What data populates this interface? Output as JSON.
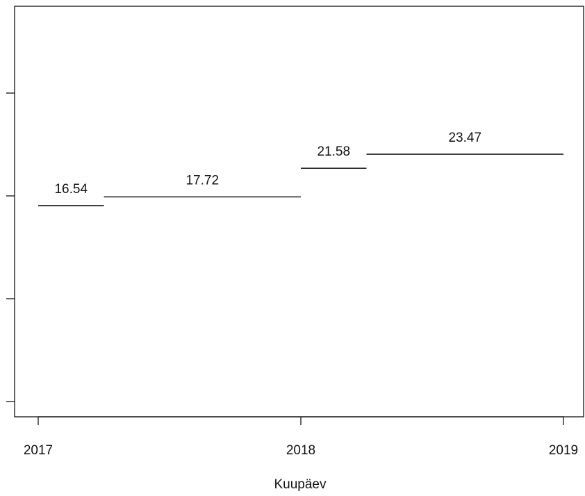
{
  "chart_data": {
    "type": "step",
    "title": "",
    "xlabel": "Kuupäev",
    "ylabel": "",
    "xlim": [
      2017,
      2019
    ],
    "x_ticks": [
      {
        "value": 2017,
        "label": "2017"
      },
      {
        "value": 2018,
        "label": "2018"
      },
      {
        "value": 2019,
        "label": "2019"
      }
    ],
    "y_ticks_count": 4,
    "y_tick_labels_visible": false,
    "series": [
      {
        "segments": [
          {
            "x_start": 2017.0,
            "x_end": 2017.25,
            "value": 16.54,
            "label": "16.54"
          },
          {
            "x_start": 2017.25,
            "x_end": 2018.0,
            "value": 17.72,
            "label": "17.72"
          },
          {
            "x_start": 2018.0,
            "x_end": 2018.25,
            "value": 21.58,
            "label": "21.58"
          },
          {
            "x_start": 2018.25,
            "x_end": 2019.0,
            "value": 23.47,
            "label": "23.47"
          }
        ]
      }
    ],
    "grid": false,
    "line_color": "#000000"
  }
}
